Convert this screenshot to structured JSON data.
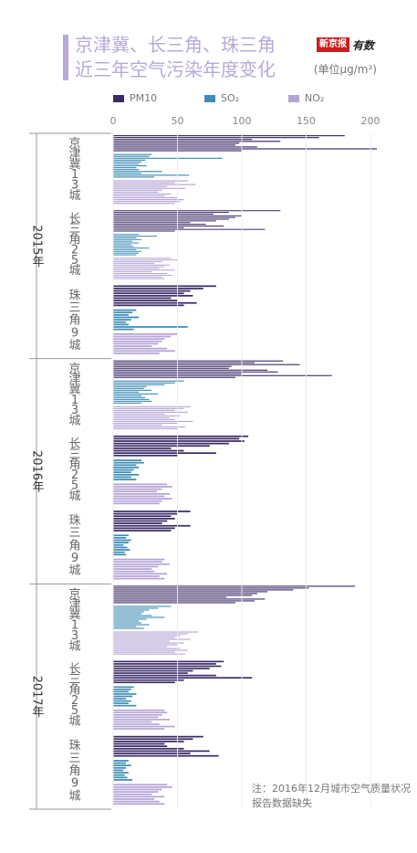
{
  "colors": {
    "pm10": "#3b2a66",
    "so2": "#3e8cb5",
    "no2": "#b5a3d6",
    "accent": "#b8a9d9"
  },
  "header": {
    "title_line1": "京津冀、长三角、珠三角",
    "title_line2": "近三年空气污染年度变化",
    "unit": "(单位μg/m³)",
    "logo_box": "新京报",
    "logo_script": "有数"
  },
  "note": "注：2016年12月城市空气质量状况报告数据缺失",
  "chart_data": {
    "type": "bar",
    "orientation": "horizontal",
    "xlim": [
      0,
      210
    ],
    "x_ticks": [
      "0",
      "50",
      "100",
      "150",
      "200"
    ],
    "legend_position": "top",
    "legend": [
      "PM10",
      "SO₂",
      "NO₂"
    ],
    "groups": [
      {
        "year": "2015年",
        "regions": [
          {
            "name": "京津冀13城",
            "PM10": [
              180,
              160,
              108,
              130,
              98,
              95,
              112,
              205,
              100
            ],
            "SO2": [
              30,
              28,
              85,
              25,
              22,
              20,
              26,
              18,
              20,
              38,
              22,
              59,
              32
            ],
            "NO2": [
              58,
              48,
              64,
              42,
              56,
              38,
              35,
              45,
              40,
              50,
              55,
              52,
              48
            ]
          },
          {
            "name": "长三角25城",
            "PM10": [
              130,
              90,
              78,
              100,
              95,
              90,
              80,
              60,
              72,
              86,
              55,
              118,
              48
            ],
            "SO2": [
              20,
              34,
              18,
              22,
              15,
              20,
              14,
              16,
              28,
              18,
              22,
              20,
              18
            ],
            "NO2": [
              45,
              50,
              38,
              32,
              44,
              40,
              36,
              48,
              30,
              42,
              46,
              38,
              40
            ]
          },
          {
            "name": "珠三角9城",
            "PM10": [
              80,
              70,
              60,
              55,
              62,
              45,
              50,
              65,
              55
            ],
            "SO2": [
              18,
              15,
              12,
              20,
              14,
              10,
              12,
              58,
              16
            ],
            "NO2": [
              50,
              45,
              40,
              38,
              35,
              30,
              42,
              48,
              36
            ]
          }
        ]
      },
      {
        "year": "2016年",
        "regions": [
          {
            "name": "京津冀13城",
            "PM10": [
              132,
              110,
              145,
              92,
              90,
              120,
              128,
              100,
              170,
              95
            ],
            "SO2": [
              55,
              48,
              40,
              26,
              24,
              30,
              20,
              35,
              22,
              25,
              28,
              30,
              22
            ],
            "NO2": [
              60,
              55,
              48,
              58,
              40,
              52,
              44,
              48,
              62,
              50,
              38,
              56,
              50
            ]
          },
          {
            "name": "长三角25城",
            "PM10": [
              105,
              98,
              102,
              90,
              75,
              45,
              55,
              80,
              50
            ],
            "SO2": [
              22,
              24,
              18,
              20,
              16,
              14,
              20,
              14,
              18
            ],
            "NO2": [
              42,
              46,
              38,
              34,
              44,
              40,
              46,
              38,
              36
            ]
          },
          {
            "name": "珠三角9城",
            "PM10": [
              60,
              50,
              45,
              48,
              42,
              38,
              60,
              48,
              45
            ],
            "SO2": [
              12,
              10,
              14,
              12,
              8,
              11,
              13,
              9,
              10
            ],
            "NO2": [
              40,
              38,
              44,
              35,
              30,
              32,
              42,
              36,
              40
            ]
          }
        ]
      },
      {
        "year": "2017年",
        "regions": [
          {
            "name": "京津冀13城",
            "PM10": [
              188,
              152,
              140,
              120,
              112,
              108,
              88,
              118,
              110,
              95
            ],
            "SO2": [
              45,
              35,
              28,
              24,
              22,
              30,
              40,
              26,
              20,
              22,
              28,
              18,
              24
            ],
            "NO2": [
              66,
              58,
              52,
              48,
              60,
              44,
              55,
              50,
              42,
              52,
              58,
              48,
              56
            ]
          },
          {
            "name": "长三角25城",
            "PM10": [
              86,
              80,
              84,
              75,
              62,
              58,
              80,
              108,
              55,
              48
            ],
            "SO2": [
              16,
              14,
              12,
              18,
              15,
              10,
              14,
              12,
              18
            ],
            "NO2": [
              40,
              42,
              38,
              35,
              44,
              30,
              36,
              48,
              40
            ]
          },
          {
            "name": "珠三角9城",
            "PM10": [
              70,
              62,
              55,
              40,
              42,
              55,
              75,
              60,
              82
            ],
            "SO2": [
              12,
              10,
              14,
              10,
              8,
              12,
              9,
              11,
              15
            ],
            "NO2": [
              42,
              46,
              38,
              35,
              30,
              40,
              32,
              36,
              40
            ]
          }
        ]
      }
    ]
  }
}
